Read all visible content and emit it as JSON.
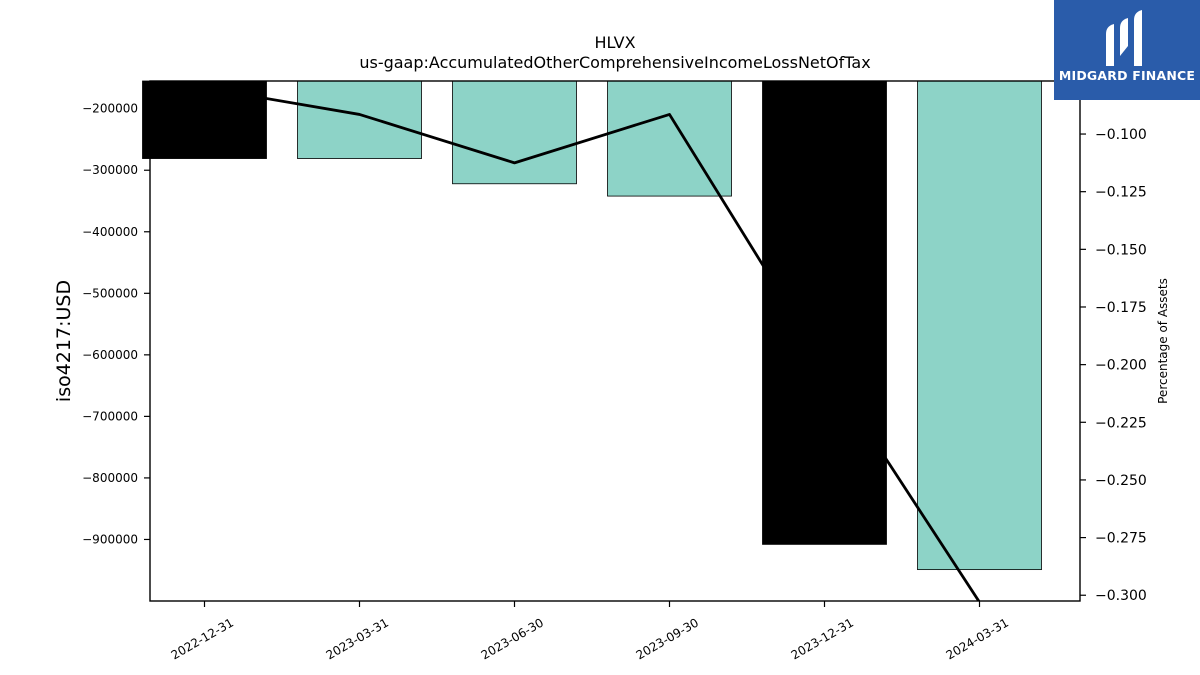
{
  "chart_data": {
    "type": "bar",
    "title": "HLVX",
    "subtitle": "us-gaap:AccumulatedOtherComprehensiveIncomeLossNetOfTax",
    "ylabel": "iso4217:USD",
    "ylabel_right": "Percentage of Assets",
    "categories": [
      "2022-12-31",
      "2023-03-31",
      "2023-06-30",
      "2023-09-30",
      "2023-12-31",
      "2024-03-31"
    ],
    "values": [
      -281000,
      -281000,
      -322000,
      -342000,
      -908000,
      -949000
    ],
    "bar_colors": [
      "#000000",
      "#8dd3c7",
      "#8dd3c7",
      "#8dd3c7",
      "#000000",
      "#8dd3c7"
    ],
    "ylim": [
      -1000000,
      -155000
    ],
    "yticks": [
      -200000,
      -300000,
      -400000,
      -500000,
      -600000,
      -700000,
      -800000,
      -900000
    ],
    "ytick_labels": [
      "−200000",
      "−300000",
      "−400000",
      "−500000",
      "−600000",
      "−700000",
      "−800000",
      "−900000"
    ],
    "line_series": {
      "values": [
        -0.08,
        -0.0915,
        -0.1125,
        -0.0915,
        -0.2,
        -0.303
      ],
      "color": "#000000",
      "ylim": [
        -0.3025,
        -0.077
      ],
      "yticks": [
        -0.1,
        -0.125,
        -0.15,
        -0.175,
        -0.2,
        -0.225,
        -0.25,
        -0.275,
        -0.3
      ],
      "ytick_labels": [
        "−0.100",
        "−0.125",
        "−0.150",
        "−0.175",
        "−0.200",
        "−0.225",
        "−0.250",
        "−0.275",
        "−0.300"
      ]
    },
    "grid": false
  },
  "logo": {
    "text": "MIDGARD FINANCE",
    "background": "#2a5caa"
  }
}
